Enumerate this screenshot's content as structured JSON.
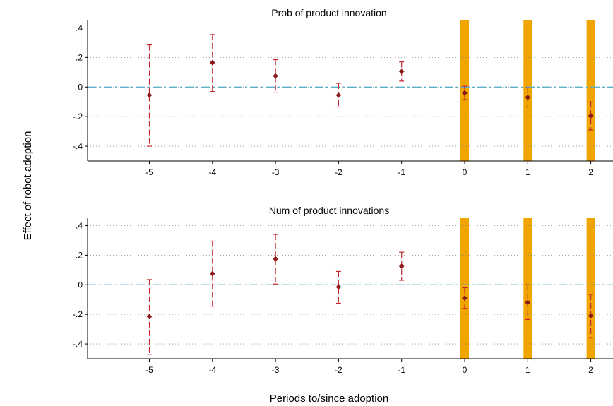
{
  "figure": {
    "ylabel": "Effect of robot adoption",
    "xlabel": "Periods to/since adoption"
  },
  "colors": {
    "point": "#8b1a1a",
    "ci": "#c0282d",
    "zero_line": "#5fb0c8",
    "highlight_bar": "#f0a500",
    "grid": "#888888"
  },
  "chart_data": [
    {
      "type": "scatter",
      "title": "Prob of product innovation",
      "ylim": [
        -0.5,
        0.45
      ],
      "yticks": [
        0.4,
        0.2,
        0,
        -0.2,
        -0.4
      ],
      "ytick_labels": [
        ".4",
        ".2",
        "0",
        "-.2",
        "-.4"
      ],
      "xticks": [
        -5,
        -4,
        -3,
        -2,
        -1,
        0,
        1,
        2
      ],
      "xtick_labels": [
        "-5",
        "-4",
        "-3",
        "-2",
        "-1",
        "0",
        "1",
        "2"
      ],
      "grid": true,
      "reference_line": 0,
      "highlighted_periods": [
        0,
        1,
        2
      ],
      "points": [
        {
          "x": -5,
          "y": -0.055,
          "lo": -0.4,
          "hi": 0.285
        },
        {
          "x": -4,
          "y": 0.165,
          "lo": -0.03,
          "hi": 0.355
        },
        {
          "x": -3,
          "y": 0.075,
          "lo": -0.035,
          "hi": 0.185
        },
        {
          "x": -2,
          "y": -0.055,
          "lo": -0.135,
          "hi": 0.025
        },
        {
          "x": -1,
          "y": 0.105,
          "lo": 0.04,
          "hi": 0.17
        },
        {
          "x": 0,
          "y": -0.04,
          "lo": -0.085,
          "hi": 0.005
        },
        {
          "x": 1,
          "y": -0.07,
          "lo": -0.135,
          "hi": -0.005
        },
        {
          "x": 2,
          "y": -0.195,
          "lo": -0.29,
          "hi": -0.1
        }
      ]
    },
    {
      "type": "scatter",
      "title": "Num of product innovations",
      "ylim": [
        -0.5,
        0.45
      ],
      "yticks": [
        0.4,
        0.2,
        0,
        -0.2,
        -0.4
      ],
      "ytick_labels": [
        ".4",
        ".2",
        "0",
        "-.2",
        "-.4"
      ],
      "xticks": [
        -5,
        -4,
        -3,
        -2,
        -1,
        0,
        1,
        2
      ],
      "xtick_labels": [
        "-5",
        "-4",
        "-3",
        "-2",
        "-1",
        "0",
        "1",
        "2"
      ],
      "grid": true,
      "reference_line": 0,
      "highlighted_periods": [
        0,
        1,
        2
      ],
      "points": [
        {
          "x": -5,
          "y": -0.215,
          "lo": -0.47,
          "hi": 0.035
        },
        {
          "x": -4,
          "y": 0.075,
          "lo": -0.145,
          "hi": 0.295
        },
        {
          "x": -3,
          "y": 0.175,
          "lo": 0.005,
          "hi": 0.34
        },
        {
          "x": -2,
          "y": -0.015,
          "lo": -0.125,
          "hi": 0.09
        },
        {
          "x": -1,
          "y": 0.125,
          "lo": 0.03,
          "hi": 0.22
        },
        {
          "x": 0,
          "y": -0.09,
          "lo": -0.16,
          "hi": -0.02
        },
        {
          "x": 1,
          "y": -0.12,
          "lo": -0.235,
          "hi": 0.0
        },
        {
          "x": 2,
          "y": -0.21,
          "lo": -0.36,
          "hi": -0.065
        }
      ]
    }
  ]
}
